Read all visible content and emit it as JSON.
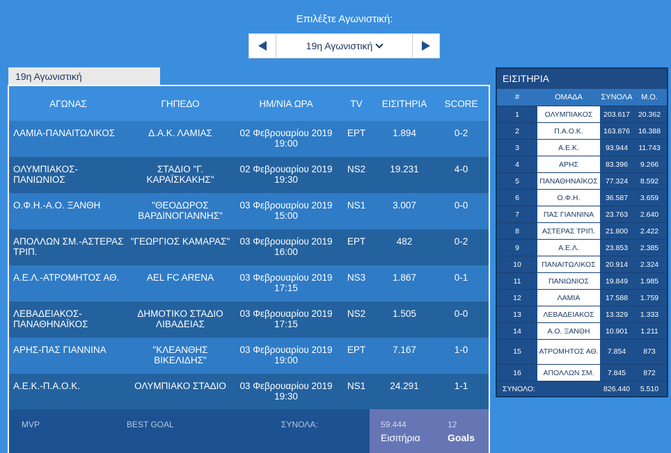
{
  "header": {
    "label": "Επιλέξτε Αγωνιστική:",
    "selected_round": "19η Αγωνιστική"
  },
  "tab": {
    "label": "19η Αγωνιστική"
  },
  "table": {
    "columns": [
      "ΑΓΩΝΑΣ",
      "ΓΗΠΕΔΟ",
      "ΗΜ/ΝΙΑ ΩΡΑ",
      "TV",
      "ΕΙΣΙΤΗΡΙΑ",
      "SCORE"
    ],
    "rows": [
      {
        "match": "ΛΑΜΙΑ-ΠΑΝΑΙΤΩΛΙΚΟΣ",
        "stadium": "Δ.Α.Κ. ΛΑΜΙΑΣ",
        "date": "02 Φεβρουαρίου 2019",
        "time": "19:00",
        "tv": "ΕΡΤ",
        "tickets": "1.894",
        "score": "0-2"
      },
      {
        "match": "ΟΛΥΜΠΙΑΚΟΣ-ΠΑΝΙΩΝΙΟΣ",
        "stadium": "ΣΤΑΔΙΟ \"Γ. ΚΑΡΑΪΣΚΑΚΗΣ\"",
        "date": "02 Φεβρουαρίου 2019",
        "time": "19:30",
        "tv": "NS2",
        "tickets": "19.231",
        "score": "4-0"
      },
      {
        "match": "Ο.Φ.Η.-Α.Ο. ΞΑΝΘΗ",
        "stadium": "\"ΘΕΟΔΩΡΟΣ ΒΑΡΔΙΝΟΓΙΑΝΝΗΣ\"",
        "date": "03 Φεβρουαρίου 2019",
        "time": "15:00",
        "tv": "NS1",
        "tickets": "3.007",
        "score": "0-0"
      },
      {
        "match": "ΑΠΟΛΛΩΝ ΣΜ.-ΑΣΤΕΡΑΣ ΤΡΙΠ.",
        "stadium": "\"ΓΕΩΡΓΙΟΣ ΚΑΜΑΡΑΣ\"",
        "date": "03 Φεβρουαρίου 2019",
        "time": "16:00",
        "tv": "ΕΡΤ",
        "tickets": "482",
        "score": "0-2"
      },
      {
        "match": "Α.Ε.Λ.-ΑΤΡΟΜΗΤΟΣ ΑΘ.",
        "stadium": "AEL FC ARENA",
        "date": "03 Φεβρουαρίου 2019",
        "time": "17:15",
        "tv": "NS3",
        "tickets": "1.867",
        "score": "0-1"
      },
      {
        "match": "ΛΕΒΑΔΕΙΑΚΟΣ-ΠΑΝΑΘΗΝΑΪΚΟΣ",
        "stadium": "ΔΗΜΟΤΙΚΟ ΣΤΑΔΙΟ ΛΙΒΑΔΕΙΑΣ",
        "date": "03 Φεβρουαρίου 2019",
        "time": "17:15",
        "tv": "NS2",
        "tickets": "1.505",
        "score": "0-0"
      },
      {
        "match": "ΑΡΗΣ-ΠΑΣ ΓΙΑΝΝΙΝΑ",
        "stadium": "\"ΚΛΕΑΝΘΗΣ ΒΙΚΕΛΙΔΗΣ\"",
        "date": "03 Φεβρουαρίου 2019",
        "time": "19:00",
        "tv": "ΕΡΤ",
        "tickets": "7.167",
        "score": "1-0"
      },
      {
        "match": "Α.Ε.Κ.-Π.Α.Ο.Κ.",
        "stadium": "ΟΛΥΜΠΙΑΚΟ ΣΤΑΔΙΟ",
        "date": "03 Φεβρουαρίου 2019",
        "time": "19:30",
        "tv": "NS1",
        "tickets": "24.291",
        "score": "1-1"
      }
    ]
  },
  "footer": {
    "mvp": "MVP",
    "best_goal": "BEST GOAL",
    "totals_label": "ΣΥΝΟΛΑ:",
    "tickets_total": "59.444",
    "tickets_label": "Εισιτήρια",
    "goals_total": "12",
    "goals_label": "Goals"
  },
  "side": {
    "title": "ΕΙΣΙΤΗΡΙΑ",
    "columns": [
      "#",
      "ΟΜΑΔΑ",
      "ΣΥΝΟΛΑ",
      "Μ.Ο."
    ],
    "rows": [
      {
        "rank": "1",
        "team": "ΟΛΥΜΠΙΑΚΟΣ",
        "total": "203.617",
        "avg": "20.362"
      },
      {
        "rank": "2",
        "team": "Π.Α.Ο.Κ.",
        "total": "163.876",
        "avg": "16.388"
      },
      {
        "rank": "3",
        "team": "Α.Ε.Κ.",
        "total": "93.944",
        "avg": "11.743"
      },
      {
        "rank": "4",
        "team": "ΑΡΗΣ",
        "total": "83.396",
        "avg": "9.266"
      },
      {
        "rank": "5",
        "team": "ΠΑΝΑΘΗΝΑΪΚΟΣ",
        "total": "77.324",
        "avg": "8.592"
      },
      {
        "rank": "6",
        "team": "Ο.Φ.Η.",
        "total": "36.587",
        "avg": "3.659"
      },
      {
        "rank": "7",
        "team": "ΠΑΣ ΓΙΑΝΝΙΝΑ",
        "total": "23.763",
        "avg": "2.640"
      },
      {
        "rank": "8",
        "team": "ΑΣΤΕΡΑΣ ΤΡΙΠ.",
        "total": "21.800",
        "avg": "2.422"
      },
      {
        "rank": "9",
        "team": "Α.Ε.Λ.",
        "total": "23.853",
        "avg": "2.385"
      },
      {
        "rank": "10",
        "team": "ΠΑΝΑΙΤΩΛΙΚΟΣ",
        "total": "20.914",
        "avg": "2.324"
      },
      {
        "rank": "11",
        "team": "ΠΑΝΙΩΝΙΟΣ",
        "total": "19.849",
        "avg": "1.985"
      },
      {
        "rank": "12",
        "team": "ΛΑΜΙΑ",
        "total": "17.588",
        "avg": "1.759"
      },
      {
        "rank": "13",
        "team": "ΛΕΒΑΔΕΙΑΚΟΣ",
        "total": "13.329",
        "avg": "1.333"
      },
      {
        "rank": "14",
        "team": "Α.Ο. ΞΑΝΘΗ",
        "total": "10.901",
        "avg": "1.211"
      },
      {
        "rank": "15",
        "team": "ΑΤΡΟΜΗΤΟΣ ΑΘ.",
        "total": "7.854",
        "avg": "873"
      },
      {
        "rank": "16",
        "team": "ΑΠΟΛΛΩΝ ΣΜ.",
        "total": "7.845",
        "avg": "872"
      }
    ],
    "footer_label": "ΣΥΝΟΛΟ:",
    "footer_total": "826.440",
    "footer_avg": "5.510"
  },
  "colors": {
    "background": "#3b8edd",
    "row_light": "#2f7bc6",
    "row_dark": "#24629f",
    "footer": "#1d5292",
    "totals_box": "#6676b5",
    "side_panel": "#1d4f8d"
  },
  "icons": [
    "prev-arrow-icon",
    "next-arrow-icon",
    "chevron-down-icon"
  ]
}
